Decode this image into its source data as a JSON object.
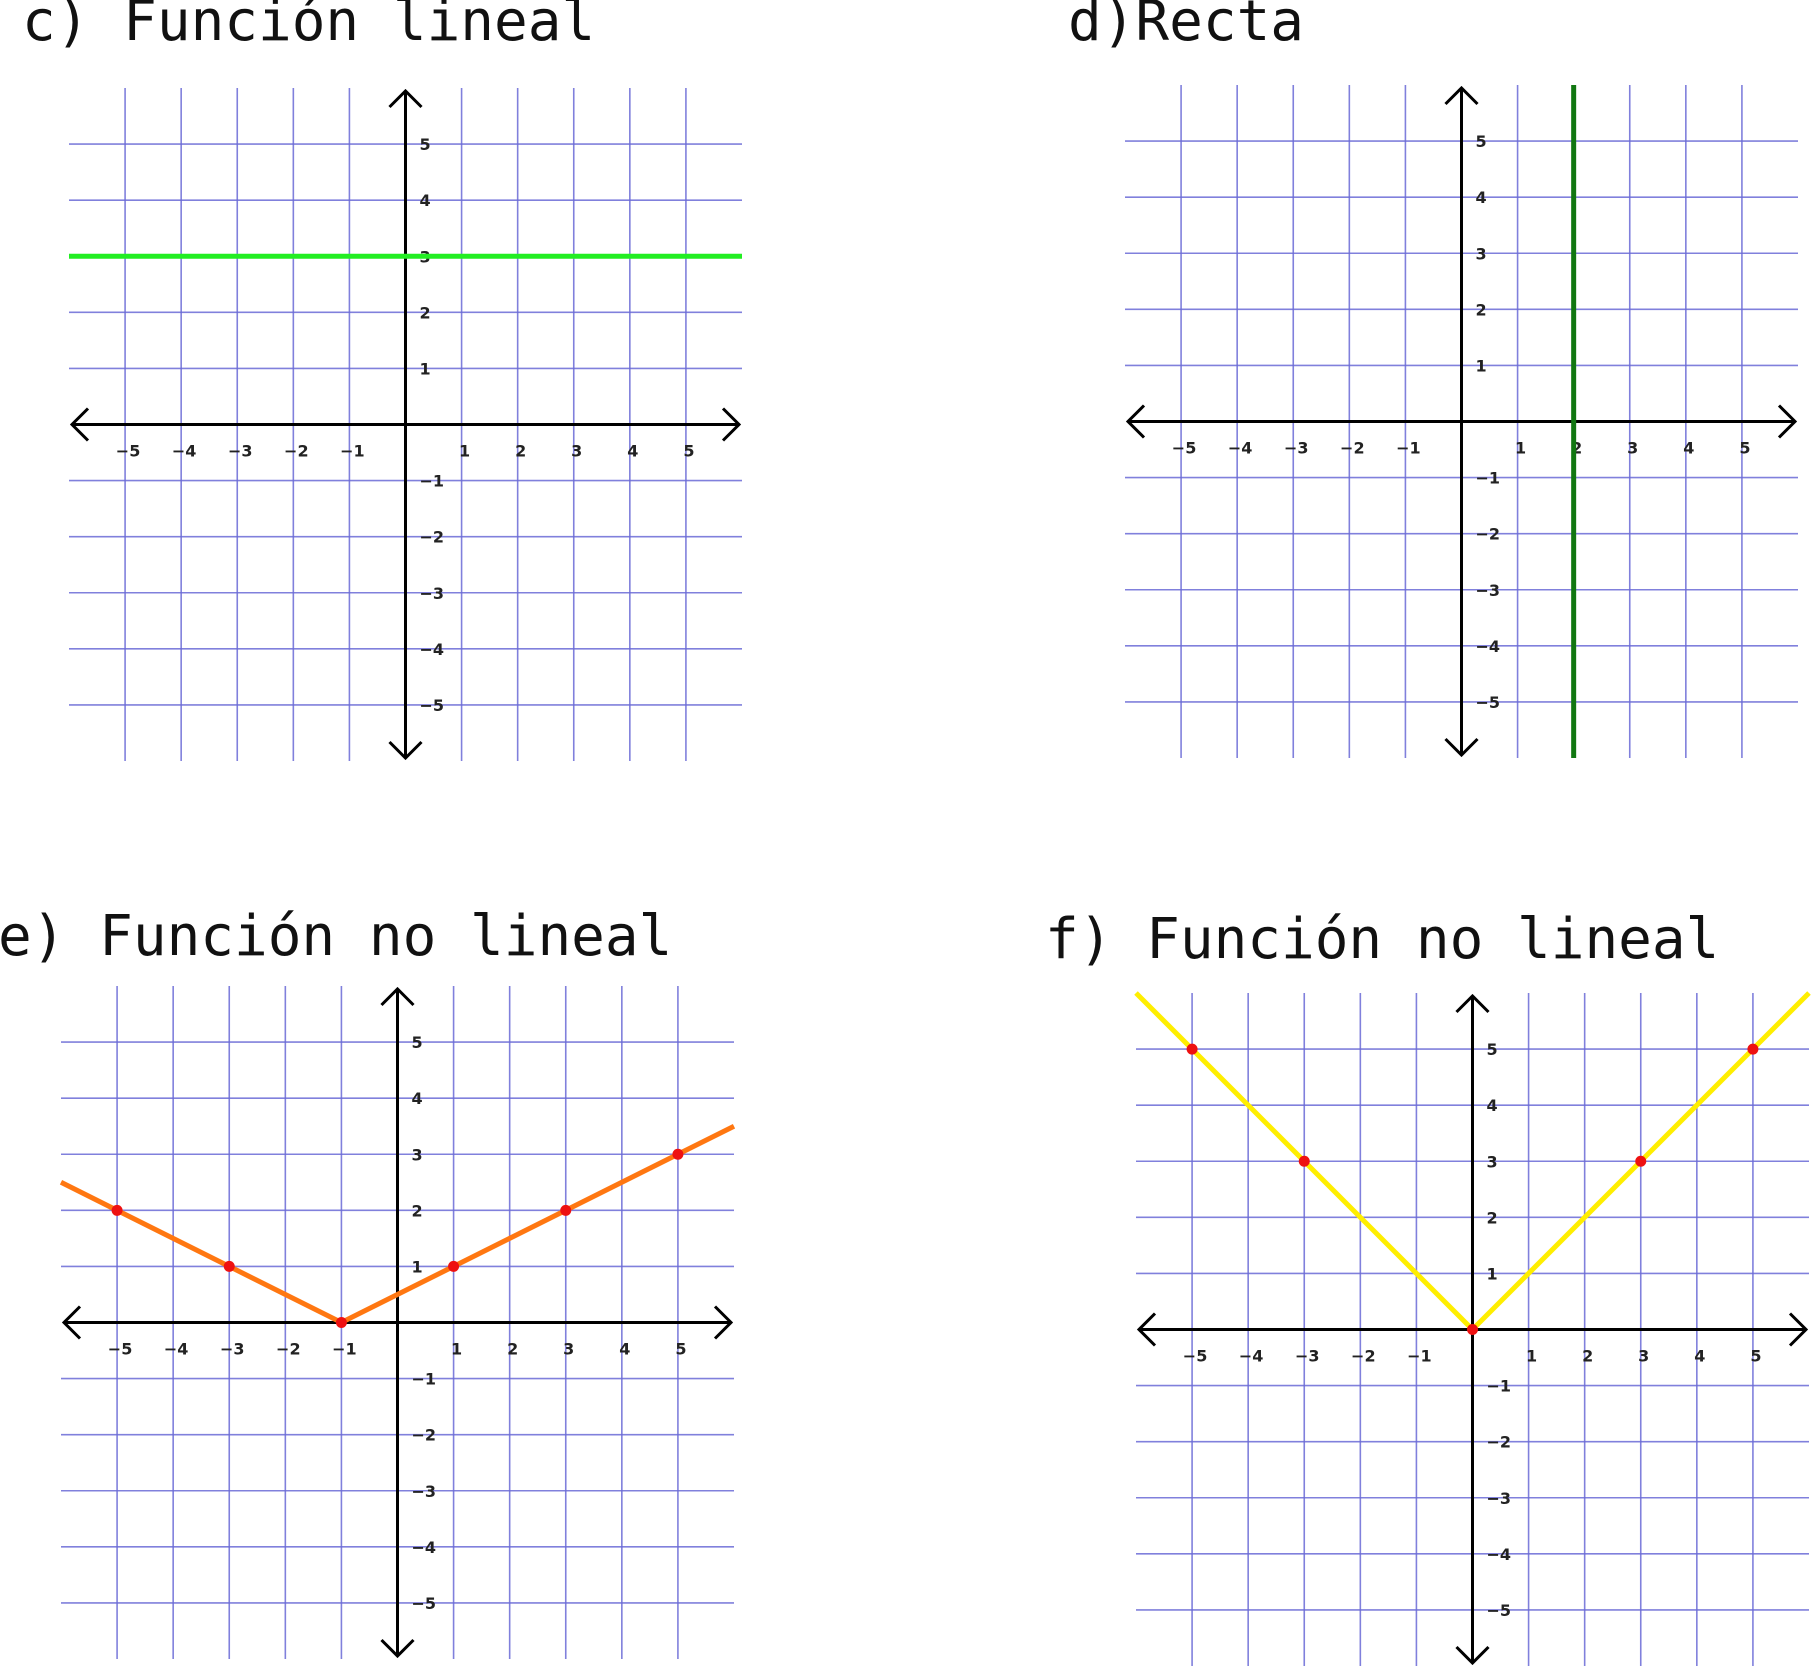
{
  "chart_data": [
    {
      "type": "line",
      "title": "c) Función lineal",
      "xlim": [
        -6,
        6
      ],
      "ylim": [
        -6,
        6
      ],
      "x_ticks": [
        -5,
        -4,
        -3,
        -2,
        -1,
        1,
        2,
        3,
        4,
        5
      ],
      "y_ticks": [
        -5,
        -4,
        -3,
        -2,
        -1,
        1,
        2,
        3,
        4,
        5
      ],
      "tick_labels_x": [
        "−5",
        "−4",
        "−3",
        "−2",
        "−1",
        "1",
        "2",
        "3",
        "4",
        "5"
      ],
      "tick_labels_y": [
        "−5",
        "−4",
        "−3",
        "−2",
        "−1",
        "1",
        "2",
        "3",
        "4",
        "5"
      ],
      "grid": true,
      "series": [
        {
          "color": "#22ee22",
          "x": [
            -6,
            6
          ],
          "y": [
            3,
            3
          ],
          "markers": []
        }
      ]
    },
    {
      "type": "line",
      "title": "d)Recta",
      "xlim": [
        -6,
        6
      ],
      "ylim": [
        -6,
        6
      ],
      "x_ticks": [
        -5,
        -4,
        -3,
        -2,
        -1,
        1,
        2,
        3,
        4,
        5
      ],
      "y_ticks": [
        -5,
        -4,
        -3,
        -2,
        -1,
        1,
        2,
        3,
        4,
        5
      ],
      "tick_labels_x": [
        "−5",
        "−4",
        "−3",
        "−2",
        "−1",
        "1",
        "2",
        "3",
        "4",
        "5"
      ],
      "tick_labels_y": [
        "−5",
        "−4",
        "−3",
        "−2",
        "−1",
        "1",
        "2",
        "3",
        "4",
        "5"
      ],
      "grid": true,
      "series": [
        {
          "color": "#117711",
          "x": [
            2,
            2
          ],
          "y": [
            6,
            -6
          ],
          "markers": []
        }
      ]
    },
    {
      "type": "line",
      "title": "e) Función no lineal",
      "xlim": [
        -6,
        6
      ],
      "ylim": [
        -6,
        6
      ],
      "x_ticks": [
        -5,
        -4,
        -3,
        -2,
        -1,
        1,
        2,
        3,
        4,
        5
      ],
      "y_ticks": [
        -5,
        -4,
        -3,
        -2,
        -1,
        1,
        2,
        3,
        4,
        5
      ],
      "tick_labels_x": [
        "−5",
        "−4",
        "−3",
        "−2",
        "−1",
        "1",
        "2",
        "3",
        "4",
        "5"
      ],
      "tick_labels_y": [
        "−5",
        "−4",
        "−3",
        "−2",
        "−1",
        "1",
        "2",
        "3",
        "4",
        "5"
      ],
      "grid": true,
      "series": [
        {
          "color": "#ff7711",
          "x": [
            -6,
            -1,
            6
          ],
          "y": [
            2.5,
            0,
            3.5
          ],
          "markers": [
            [
              -5,
              2
            ],
            [
              -3,
              1
            ],
            [
              -1,
              0
            ],
            [
              1,
              1
            ],
            [
              3,
              2
            ],
            [
              5,
              3
            ]
          ]
        }
      ]
    },
    {
      "type": "line",
      "title": "f) Función no lineal",
      "xlim": [
        -6,
        6
      ],
      "ylim": [
        -6,
        6
      ],
      "x_ticks": [
        -5,
        -4,
        -3,
        -2,
        -1,
        1,
        2,
        3,
        4,
        5
      ],
      "y_ticks": [
        -5,
        -4,
        -3,
        -2,
        -1,
        1,
        2,
        3,
        4,
        5
      ],
      "tick_labels_x": [
        "−5",
        "−4",
        "−3",
        "−2",
        "−1",
        "1",
        "2",
        "3",
        "4",
        "5"
      ],
      "tick_labels_y": [
        "−5",
        "−4",
        "−3",
        "−2",
        "−1",
        "1",
        "2",
        "3",
        "4",
        "5"
      ],
      "grid": true,
      "series": [
        {
          "color": "#ffee00",
          "x": [
            -6,
            0,
            6
          ],
          "y": [
            6,
            0,
            6
          ],
          "markers": [
            [
              -5,
              5
            ],
            [
              -3,
              3
            ],
            [
              0,
              0
            ],
            [
              3,
              3
            ],
            [
              5,
              5
            ]
          ]
        }
      ]
    }
  ]
}
